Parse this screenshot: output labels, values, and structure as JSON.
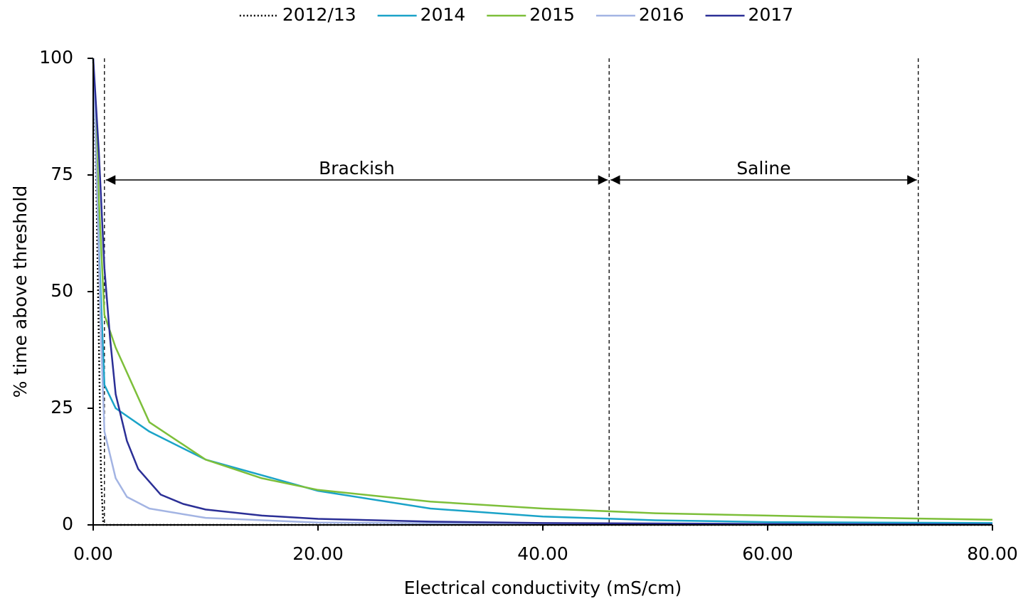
{
  "chart_data": {
    "type": "line",
    "x_label": "Electrical conductivity (mS/cm)",
    "y_label": "% time above threshold",
    "xlim": [
      0,
      80
    ],
    "ylim": [
      0,
      100
    ],
    "xticks": [
      {
        "value": 0,
        "label": "0.00"
      },
      {
        "value": 20,
        "label": "20.00"
      },
      {
        "value": 40,
        "label": "40.00"
      },
      {
        "value": 60,
        "label": "60.00"
      },
      {
        "value": 80,
        "label": "80.00"
      }
    ],
    "yticks": [
      0,
      25,
      50,
      75,
      100
    ],
    "grid": false,
    "legend": "top",
    "reference_lines": [
      1,
      45.9,
      73.4
    ],
    "regions": [
      "Brackish",
      "Saline"
    ],
    "series": [
      {
        "name": "2012/13",
        "color": "#000000",
        "dash": "dotted",
        "x": [
          0,
          0.3,
          0.5,
          0.7,
          0.9,
          80
        ],
        "values": [
          100,
          70,
          40,
          10,
          0,
          0
        ]
      },
      {
        "name": "2014",
        "color": "#1aa3c8",
        "dash": "solid",
        "x": [
          0,
          0.5,
          1,
          2,
          5,
          10,
          20,
          30,
          40,
          50,
          60,
          80
        ],
        "values": [
          100,
          60,
          30,
          25,
          20,
          14,
          7.3,
          3.5,
          1.8,
          1,
          0.6,
          0.4
        ]
      },
      {
        "name": "2015",
        "color": "#7dbf3a",
        "dash": "solid",
        "x": [
          0,
          0.5,
          1,
          2,
          5,
          10,
          15,
          20,
          30,
          40,
          50,
          60,
          70,
          80
        ],
        "values": [
          100,
          70,
          45,
          38,
          22,
          14,
          10,
          7.5,
          5,
          3.5,
          2.5,
          2,
          1.5,
          1.1
        ]
      },
      {
        "name": "2016",
        "color": "#a3b4e3",
        "dash": "solid",
        "x": [
          0,
          0.3,
          0.7,
          1,
          2,
          3,
          5,
          10,
          20,
          40,
          80
        ],
        "values": [
          100,
          75,
          40,
          20,
          10,
          6,
          3.5,
          1.5,
          0.5,
          0.2,
          0.1
        ]
      },
      {
        "name": "2017",
        "color": "#2b2f96",
        "dash": "solid",
        "x": [
          0,
          0.5,
          1,
          1.5,
          2,
          3,
          4,
          6,
          8,
          10,
          15,
          20,
          30,
          40,
          60,
          80
        ],
        "values": [
          100,
          80,
          55,
          40,
          28,
          18,
          12,
          6.5,
          4.5,
          3.3,
          2,
          1.3,
          0.7,
          0.4,
          0.2,
          0.1
        ]
      }
    ]
  }
}
